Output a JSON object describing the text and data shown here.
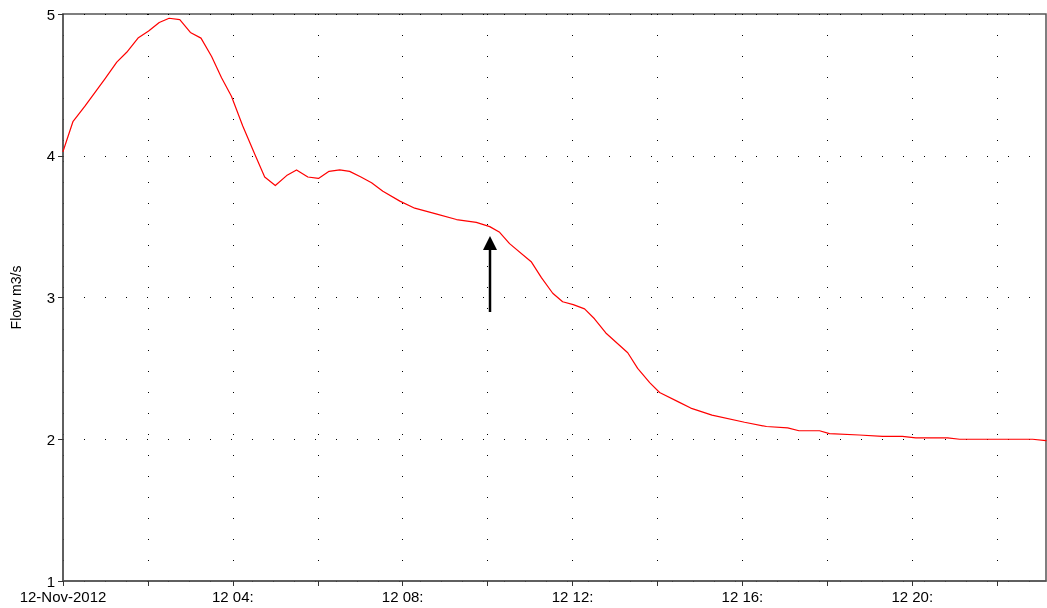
{
  "chart_data": {
    "type": "line",
    "ylabel": "Flow m3/s",
    "x": [
      "2012-11-12T00:00",
      "2012-11-12T00:14",
      "2012-11-12T00:31",
      "2012-11-12T00:59",
      "2012-11-12T01:16",
      "2012-11-12T01:30",
      "2012-11-12T01:46",
      "2012-11-12T02:01",
      "2012-11-12T02:16",
      "2012-11-12T02:30",
      "2012-11-12T02:45",
      "2012-11-12T03:00",
      "2012-11-12T03:15",
      "2012-11-12T03:30",
      "2012-11-12T03:44",
      "2012-11-12T03:58",
      "2012-11-12T04:14",
      "2012-11-12T04:31",
      "2012-11-12T04:45",
      "2012-11-12T05:00",
      "2012-11-12T05:16",
      "2012-11-12T05:30",
      "2012-11-12T05:46",
      "2012-11-12T06:01",
      "2012-11-12T06:16",
      "2012-11-12T06:31",
      "2012-11-12T06:45",
      "2012-11-12T07:01",
      "2012-11-12T07:16",
      "2012-11-12T07:32",
      "2012-11-12T07:56",
      "2012-11-12T08:17",
      "2012-11-12T08:47",
      "2012-11-12T09:16",
      "2012-11-12T09:44",
      "2012-11-12T10:03",
      "2012-11-12T10:17",
      "2012-11-12T10:31",
      "2012-11-12T11:02",
      "2012-11-12T11:16",
      "2012-11-12T11:32",
      "2012-11-12T11:46",
      "2012-11-12T12:01",
      "2012-11-12T12:17",
      "2012-11-12T12:31",
      "2012-11-12T12:47",
      "2012-11-12T13:18",
      "2012-11-12T13:32",
      "2012-11-12T13:49",
      "2012-11-12T14:03",
      "2012-11-12T14:31",
      "2012-11-12T14:47",
      "2012-11-12T15:17",
      "2012-11-12T16:03",
      "2012-11-12T16:34",
      "2012-11-12T17:04",
      "2012-11-12T17:20",
      "2012-11-12T17:49",
      "2012-11-12T18:03",
      "2012-11-12T18:45",
      "2012-11-12T19:18",
      "2012-11-12T19:46",
      "2012-11-12T20:05",
      "2012-11-12T20:50",
      "2012-11-12T21:07",
      "2012-11-12T22:50",
      "2012-11-12T23:09"
    ],
    "series": [
      {
        "color": "#ff0000",
        "values": [
          4.03,
          4.24,
          4.35,
          4.54,
          4.66,
          4.73,
          4.83,
          4.88,
          4.94,
          4.97,
          4.96,
          4.87,
          4.83,
          4.7,
          4.55,
          4.42,
          4.21,
          4.01,
          3.85,
          3.79,
          3.86,
          3.9,
          3.85,
          3.84,
          3.89,
          3.9,
          3.89,
          3.85,
          3.81,
          3.75,
          3.68,
          3.63,
          3.59,
          3.55,
          3.53,
          3.5,
          3.46,
          3.38,
          3.25,
          3.14,
          3.03,
          2.97,
          2.95,
          2.92,
          2.85,
          2.75,
          2.61,
          2.5,
          2.4,
          2.33,
          2.26,
          2.22,
          2.17,
          2.12,
          2.09,
          2.08,
          2.06,
          2.06,
          2.04,
          2.03,
          2.02,
          2.02,
          2.01,
          2.01,
          2.0,
          2.0,
          1.99
        ]
      }
    ],
    "xlim": [
      "2012-11-12T00:00",
      "2012-11-12T23:09"
    ],
    "xticks": [
      {
        "value": "2012-11-12T00:00",
        "label": "12-Nov-2012"
      },
      {
        "value": "2012-11-12T02:00",
        "label": null
      },
      {
        "value": "2012-11-12T04:00",
        "label": "12 04:"
      },
      {
        "value": "2012-11-12T06:00",
        "label": null
      },
      {
        "value": "2012-11-12T08:00",
        "label": "12 08:"
      },
      {
        "value": "2012-11-12T10:00",
        "label": null
      },
      {
        "value": "2012-11-12T12:00",
        "label": "12 12:"
      },
      {
        "value": "2012-11-12T14:00",
        "label": null
      },
      {
        "value": "2012-11-12T16:00",
        "label": "12 16:"
      },
      {
        "value": "2012-11-12T18:00",
        "label": null
      },
      {
        "value": "2012-11-12T20:00",
        "label": "12 20:"
      },
      {
        "value": "2012-11-12T22:00",
        "label": null
      }
    ],
    "ylim": [
      1,
      5
    ],
    "yticks": [
      1,
      2,
      3,
      4,
      5
    ],
    "grid": true,
    "marker": "none",
    "line_style": "solid"
  }
}
